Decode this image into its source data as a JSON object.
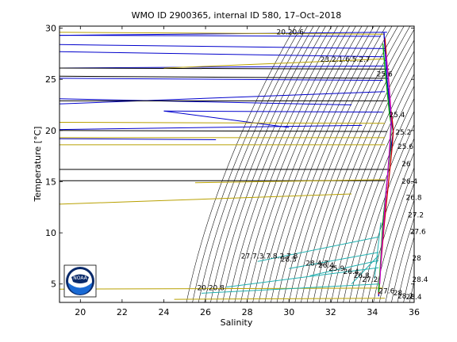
{
  "chart_data": {
    "type": "line",
    "title": "WMO ID 2900365, internal ID 580, 17–Oct–2018",
    "xlabel": "Salinity",
    "ylabel": "Temperature [°C]",
    "xlim": [
      19,
      36
    ],
    "ylim": [
      3.2,
      30.2
    ],
    "xticks": [
      20,
      22,
      24,
      26,
      28,
      30,
      32,
      34,
      36
    ],
    "yticks": [
      5,
      10,
      15,
      20,
      25,
      30
    ],
    "grid": false,
    "density_labels": [
      {
        "text": "20.20.6",
        "s": 29.4,
        "t": 29.4
      },
      {
        "text": "23.2.1.6.5.2.7",
        "s": 31.5,
        "t": 26.7
      },
      {
        "text": "25.6",
        "s": 34.2,
        "t": 25.3
      },
      {
        "text": "25.4",
        "s": 34.8,
        "t": 21.3
      },
      {
        "text": "25.2",
        "s": 35.1,
        "t": 19.6
      },
      {
        "text": "25.6",
        "s": 35.2,
        "t": 18.2
      },
      {
        "text": "26",
        "s": 35.4,
        "t": 16.5
      },
      {
        "text": "26.4",
        "s": 35.4,
        "t": 14.8
      },
      {
        "text": "26.8",
        "s": 35.6,
        "t": 13.2
      },
      {
        "text": "27.2",
        "s": 35.7,
        "t": 11.5
      },
      {
        "text": "27.6",
        "s": 35.8,
        "t": 9.9
      },
      {
        "text": "28",
        "s": 35.9,
        "t": 7.3
      },
      {
        "text": "28.4",
        "s": 35.9,
        "t": 5.2
      },
      {
        "text": "27.7.3.7.8.2.7.8",
        "s": 27.7,
        "t": 7.5
      },
      {
        "text": "28.3",
        "s": 29.6,
        "t": 7.2
      },
      {
        "text": "28.4.7",
        "s": 30.8,
        "t": 6.8
      },
      {
        "text": "26.4",
        "s": 31.4,
        "t": 6.6
      },
      {
        "text": "25.9",
        "s": 31.9,
        "t": 6.3
      },
      {
        "text": "26.4",
        "s": 32.6,
        "t": 6.0
      },
      {
        "text": "26.8",
        "s": 33.1,
        "t": 5.6
      },
      {
        "text": "27.2",
        "s": 33.5,
        "t": 5.2
      },
      {
        "text": "20.20.8",
        "s": 25.6,
        "t": 4.4
      },
      {
        "text": "27.6",
        "s": 34.3,
        "t": 4.1
      },
      {
        "text": "28",
        "s": 35.0,
        "t": 3.9
      },
      {
        "text": "28.2",
        "s": 35.2,
        "t": 3.6
      },
      {
        "text": "28.4",
        "s": 35.6,
        "t": 3.5
      }
    ],
    "series": [
      {
        "color": "#0000cc",
        "x": [
          34.55,
          34.6,
          34.65,
          34.7,
          34.75,
          34.8,
          34.85,
          34.9,
          34.95,
          35.0,
          34.9,
          34.8,
          34.7,
          34.6,
          34.5,
          34.45,
          34.4,
          34.35,
          34.3,
          34.3
        ],
        "y": [
          29.6,
          28.0,
          26.5,
          25.0,
          24.0,
          23.0,
          22.0,
          21.0,
          20.5,
          19.8,
          18.5,
          17.0,
          15.0,
          13.0,
          11.0,
          9.0,
          7.0,
          5.5,
          4.5,
          3.8
        ]
      },
      {
        "color": "#cc0000",
        "x": [
          34.6,
          34.7,
          34.8,
          34.85,
          34.95,
          35.0,
          34.95,
          34.85,
          34.7,
          34.55,
          34.45,
          34.35,
          34.3
        ],
        "y": [
          29.0,
          26.5,
          24.5,
          22.5,
          21.0,
          20.0,
          18.5,
          16.5,
          13.5,
          10.5,
          8.0,
          5.5,
          4.0
        ]
      },
      {
        "color": "#00aa00",
        "x": [
          34.5,
          34.6,
          34.7,
          34.8,
          34.9,
          34.85,
          34.7,
          34.5,
          34.4,
          34.3
        ],
        "y": [
          28.5,
          26.0,
          24.0,
          22.0,
          20.5,
          18.0,
          15.0,
          11.0,
          7.5,
          4.2
        ]
      },
      {
        "color": "#cc00cc",
        "x": [
          34.65,
          34.75,
          34.85,
          34.9,
          34.8,
          34.6,
          34.45,
          34.35
        ],
        "y": [
          27.5,
          25.5,
          23.0,
          21.0,
          17.5,
          12.5,
          8.5,
          5.0
        ]
      }
    ],
    "lines": [
      {
        "color": "#0000cc",
        "x": [
          19.0,
          34.7
        ],
        "y": [
          29.3,
          29.6
        ]
      },
      {
        "color": "#0000cc",
        "x": [
          19.0,
          34.6
        ],
        "y": [
          28.4,
          28.0
        ]
      },
      {
        "color": "#0000cc",
        "x": [
          19.0,
          34.55
        ],
        "y": [
          27.7,
          27.2
        ]
      },
      {
        "color": "#0000cc",
        "x": [
          19.0,
          34.6
        ],
        "y": [
          26.1,
          26.3
        ]
      },
      {
        "color": "#0000cc",
        "x": [
          19.0,
          34.5
        ],
        "y": [
          25.1,
          24.9
        ]
      },
      {
        "color": "#0000cc",
        "x": [
          19.0,
          33.0
        ],
        "y": [
          23.1,
          22.5
        ]
      },
      {
        "color": "#0000cc",
        "x": [
          19.0,
          34.6
        ],
        "y": [
          22.6,
          23.8
        ]
      },
      {
        "color": "#0000cc",
        "x": [
          24.0,
          30.0
        ],
        "y": [
          21.9,
          20.3
        ]
      },
      {
        "color": "#0000cc",
        "x": [
          24.0,
          34.5
        ],
        "y": [
          21.9,
          21.8
        ]
      },
      {
        "color": "#0000cc",
        "x": [
          19.0,
          33.5
        ],
        "y": [
          20.1,
          20.5
        ]
      },
      {
        "color": "#0000cc",
        "x": [
          19.0,
          26.5
        ],
        "y": [
          19.2,
          19.1
        ]
      },
      {
        "color": "#0000cc",
        "x": [
          19.0,
          34.4
        ],
        "y": [
          29.3,
          29.2
        ]
      },
      {
        "color": "#000000",
        "x": [
          19.0,
          34.8
        ],
        "y": [
          26.1,
          26.0
        ]
      },
      {
        "color": "#000000",
        "x": [
          19.0,
          34.7
        ],
        "y": [
          22.9,
          22.9
        ]
      },
      {
        "color": "#000000",
        "x": [
          19.0,
          34.7
        ],
        "y": [
          20.0,
          19.9
        ]
      },
      {
        "color": "#000000",
        "x": [
          19.0,
          34.8
        ],
        "y": [
          16.2,
          16.2
        ]
      },
      {
        "color": "#000000",
        "x": [
          19.0,
          34.6
        ],
        "y": [
          15.1,
          15.1
        ]
      },
      {
        "color": "#000000",
        "x": [
          19.0,
          34.7
        ],
        "y": [
          25.3,
          25.1
        ]
      },
      {
        "color": "#b8a000",
        "x": [
          19.0,
          34.6
        ],
        "y": [
          29.6,
          29.4
        ]
      },
      {
        "color": "#b8a000",
        "x": [
          19.0,
          34.6
        ],
        "y": [
          20.8,
          20.7
        ]
      },
      {
        "color": "#b8a000",
        "x": [
          19.0,
          34.6
        ],
        "y": [
          19.3,
          19.3
        ]
      },
      {
        "color": "#b8a000",
        "x": [
          19.0,
          34.6
        ],
        "y": [
          18.6,
          18.6
        ]
      },
      {
        "color": "#b8a000",
        "x": [
          25.5,
          34.6
        ],
        "y": [
          14.9,
          15.2
        ]
      },
      {
        "color": "#b8a000",
        "x": [
          19.0,
          33.0
        ],
        "y": [
          12.8,
          13.8
        ]
      },
      {
        "color": "#b8a000",
        "x": [
          19.0,
          34.5
        ],
        "y": [
          4.5,
          4.6
        ]
      },
      {
        "color": "#b8a000",
        "x": [
          24.5,
          34.6
        ],
        "y": [
          3.5,
          3.6
        ]
      },
      {
        "color": "#b8a000",
        "x": [
          24.0,
          34.6
        ],
        "y": [
          26.1,
          27.0
        ]
      },
      {
        "color": "#20b0b0",
        "x": [
          28.5,
          34.3
        ],
        "y": [
          7.2,
          9.6
        ]
      },
      {
        "color": "#20b0b0",
        "x": [
          30.0,
          34.3
        ],
        "y": [
          6.5,
          8.1
        ]
      },
      {
        "color": "#20b0b0",
        "x": [
          31.0,
          34.3
        ],
        "y": [
          5.8,
          7.3
        ]
      },
      {
        "color": "#20b0b0",
        "x": [
          33.0,
          34.3
        ],
        "y": [
          5.0,
          7.8
        ]
      },
      {
        "color": "#20b0b0",
        "x": [
          34.1,
          34.4
        ],
        "y": [
          5.5,
          11.0
        ]
      },
      {
        "color": "#20b0b0",
        "x": [
          25.8,
          34.3
        ],
        "y": [
          4.1,
          5.0
        ]
      },
      {
        "color": "#20b0b0",
        "x": [
          27.0,
          34.3
        ],
        "y": [
          4.7,
          6.6
        ]
      }
    ]
  },
  "logo": {
    "text": "NOAA",
    "colors": {
      "blue": "#1a6ad4",
      "navy": "#0a2a6a"
    }
  }
}
